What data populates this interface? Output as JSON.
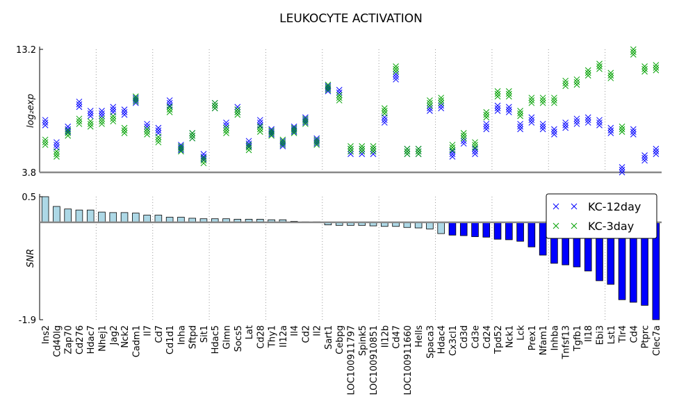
{
  "chart_data": [
    {
      "type": "scatter",
      "title": "LEUKOCYTE ACTIVATION",
      "ylabel": "log₂exp",
      "ylim": [
        3.8,
        13.2
      ],
      "yticks": [
        3.8,
        13.2
      ],
      "series": [
        {
          "name": "KC-12day",
          "color": "#0000ff",
          "values": [
            [
              7.4,
              7.6,
              7.8
            ],
            [
              5.7,
              5.9,
              6.1
            ],
            [
              6.9,
              7.1,
              7.3
            ],
            [
              8.8,
              9.0,
              9.2
            ],
            [
              8.1,
              8.3,
              8.5
            ],
            [
              8.1,
              8.3,
              8.5
            ],
            [
              8.4,
              8.6,
              8.8
            ],
            [
              8.2,
              8.4,
              8.6
            ],
            [
              9.1,
              9.3,
              9.5
            ],
            [
              7.1,
              7.3,
              7.5
            ],
            [
              6.8,
              7.0,
              7.2
            ],
            [
              8.9,
              9.1,
              9.3
            ],
            [
              5.5,
              5.7,
              5.9
            ],
            [
              6.4,
              6.6,
              6.8
            ],
            [
              4.8,
              5.0,
              5.2
            ],
            [
              8.7,
              8.9,
              9.1
            ],
            [
              7.2,
              7.4,
              7.6
            ],
            [
              8.4,
              8.6,
              8.8
            ],
            [
              5.8,
              6.0,
              6.2
            ],
            [
              7.4,
              7.6,
              7.8
            ],
            [
              6.7,
              6.9,
              7.1
            ],
            [
              5.8,
              6.0,
              6.2
            ],
            [
              6.9,
              7.1,
              7.3
            ],
            [
              7.6,
              7.8,
              8.0
            ],
            [
              6.0,
              6.2,
              6.4
            ],
            [
              10.0,
              10.2,
              10.4
            ],
            [
              9.7,
              9.9,
              10.1
            ],
            [
              5.2,
              5.4,
              5.6
            ],
            [
              5.2,
              5.4,
              5.6
            ],
            [
              5.2,
              5.4,
              5.6
            ],
            [
              7.6,
              7.8,
              8.0
            ],
            [
              10.9,
              11.1,
              11.3
            ],
            [
              5.2,
              5.4,
              5.6
            ],
            [
              5.2,
              5.4,
              5.6
            ],
            [
              8.5,
              8.7,
              8.9
            ],
            [
              8.7,
              8.9,
              9.1
            ],
            [
              5.0,
              5.2,
              5.4
            ],
            [
              6.0,
              6.2,
              6.4
            ],
            [
              5.2,
              5.4,
              5.6
            ],
            [
              7.1,
              7.3,
              7.5
            ],
            [
              8.5,
              8.7,
              8.9
            ],
            [
              8.4,
              8.6,
              8.8
            ],
            [
              7.1,
              7.3,
              7.5
            ],
            [
              7.6,
              7.8,
              8.0
            ],
            [
              7.1,
              7.3,
              7.5
            ],
            [
              6.7,
              6.9,
              7.1
            ],
            [
              7.2,
              7.4,
              7.6
            ],
            [
              7.5,
              7.7,
              7.9
            ],
            [
              7.6,
              7.8,
              8.0
            ],
            [
              7.4,
              7.6,
              7.8
            ],
            [
              6.8,
              7.0,
              7.2
            ],
            [
              3.8,
              4.0,
              4.2
            ],
            [
              6.7,
              6.9,
              7.1
            ],
            [
              4.7,
              4.9,
              5.1
            ],
            [
              5.2,
              5.4,
              5.6
            ]
          ]
        },
        {
          "name": "KC-3day",
          "color": "#00a000",
          "values": [
            [
              5.9,
              6.1,
              6.3
            ],
            [
              5.0,
              5.2,
              5.4
            ],
            [
              6.6,
              6.8,
              7.0
            ],
            [
              7.5,
              7.7,
              7.9
            ],
            [
              7.3,
              7.5,
              7.7
            ],
            [
              7.5,
              7.7,
              7.9
            ],
            [
              7.7,
              7.9,
              8.1
            ],
            [
              6.8,
              7.0,
              7.2
            ],
            [
              9.2,
              9.4,
              9.6
            ],
            [
              6.7,
              6.9,
              7.1
            ],
            [
              6.1,
              6.3,
              6.5
            ],
            [
              8.4,
              8.6,
              8.8
            ],
            [
              5.4,
              5.6,
              5.8
            ],
            [
              6.4,
              6.6,
              6.8
            ],
            [
              4.5,
              4.7,
              4.9
            ],
            [
              8.7,
              8.9,
              9.1
            ],
            [
              6.8,
              7.0,
              7.2
            ],
            [
              8.2,
              8.4,
              8.6
            ],
            [
              5.5,
              5.7,
              5.9
            ],
            [
              6.9,
              7.1,
              7.3
            ],
            [
              6.6,
              6.8,
              7.0
            ],
            [
              5.9,
              6.1,
              6.3
            ],
            [
              6.8,
              7.0,
              7.2
            ],
            [
              7.5,
              7.7,
              7.9
            ],
            [
              5.9,
              6.1,
              6.3
            ],
            [
              10.1,
              10.3,
              10.5
            ],
            [
              9.3,
              9.5,
              9.7
            ],
            [
              5.4,
              5.6,
              5.8
            ],
            [
              5.4,
              5.6,
              5.8
            ],
            [
              5.4,
              5.6,
              5.8
            ],
            [
              8.3,
              8.5,
              8.7
            ],
            [
              11.5,
              11.7,
              11.9
            ],
            [
              5.2,
              5.4,
              5.6
            ],
            [
              5.2,
              5.4,
              5.6
            ],
            [
              8.9,
              9.1,
              9.3
            ],
            [
              9.1,
              9.3,
              9.5
            ],
            [
              5.5,
              5.7,
              5.9
            ],
            [
              6.4,
              6.6,
              6.8
            ],
            [
              5.7,
              5.9,
              6.1
            ],
            [
              8.0,
              8.2,
              8.4
            ],
            [
              9.6,
              9.8,
              10.0
            ],
            [
              9.6,
              9.8,
              10.0
            ],
            [
              8.1,
              8.3,
              8.5
            ],
            [
              9.1,
              9.3,
              9.5
            ],
            [
              9.1,
              9.3,
              9.5
            ],
            [
              9.1,
              9.3,
              9.5
            ],
            [
              10.4,
              10.6,
              10.8
            ],
            [
              10.5,
              10.7,
              10.9
            ],
            [
              11.2,
              11.4,
              11.6
            ],
            [
              11.7,
              11.9,
              12.1
            ],
            [
              11.0,
              11.2,
              11.4
            ],
            [
              6.9,
              7.1,
              7.3
            ],
            [
              12.8,
              13.0,
              13.2
            ],
            [
              11.5,
              11.7,
              11.9
            ],
            [
              11.6,
              11.8,
              12.0
            ]
          ]
        }
      ],
      "legend": "upper right"
    },
    {
      "type": "bar",
      "ylabel": "SNR",
      "ylim": [
        -1.9,
        0.5
      ],
      "yticks": [
        -1.9,
        0.5
      ],
      "categories": [
        "Ins2",
        "Cd40lg",
        "Zap70",
        "Cd276",
        "Hdac7",
        "Nhej1",
        "Jag2",
        "Nck2",
        "Cadm1",
        "Il7",
        "Cd7",
        "Cd1d1",
        "Inha",
        "Sftpd",
        "Sit1",
        "Hdac5",
        "Glmn",
        "Socs5",
        "Lat",
        "Cd28",
        "Thy1",
        "Il12a",
        "Il4",
        "Cd2",
        "Il2",
        "Sart1",
        "Cebpg",
        "LOC100911797",
        "Spink5",
        "LOC100910851",
        "Il12b",
        "Cd47",
        "LOC100911660",
        "Hells",
        "Spaca3",
        "Hdac4",
        "Cx3cl1",
        "Cd3d",
        "Cd3e",
        "Cd24",
        "Tpd52",
        "Nck1",
        "Lck",
        "Prex1",
        "Nfam1",
        "Inhba",
        "Tnfsf13",
        "Tgfb1",
        "Il18",
        "Ebi3",
        "Lst1",
        "Tlr4",
        "Cd4",
        "Ptprc",
        "Clec7a"
      ],
      "values": [
        0.5,
        0.31,
        0.26,
        0.24,
        0.24,
        0.2,
        0.19,
        0.19,
        0.18,
        0.14,
        0.14,
        0.1,
        0.1,
        0.08,
        0.07,
        0.07,
        0.07,
        0.06,
        0.06,
        0.06,
        0.05,
        0.05,
        0.02,
        0.01,
        0.01,
        -0.05,
        -0.06,
        -0.06,
        -0.06,
        -0.07,
        -0.08,
        -0.08,
        -0.1,
        -0.11,
        -0.13,
        -0.22,
        -0.25,
        -0.26,
        -0.28,
        -0.29,
        -0.33,
        -0.34,
        -0.37,
        -0.48,
        -0.64,
        -0.8,
        -0.83,
        -0.87,
        -0.95,
        -1.14,
        -1.21,
        -1.51,
        -1.56,
        -1.62,
        -1.9
      ],
      "colors": [
        "#add8e6",
        "#add8e6",
        "#add8e6",
        "#add8e6",
        "#add8e6",
        "#add8e6",
        "#add8e6",
        "#add8e6",
        "#add8e6",
        "#add8e6",
        "#add8e6",
        "#add8e6",
        "#add8e6",
        "#add8e6",
        "#add8e6",
        "#add8e6",
        "#add8e6",
        "#add8e6",
        "#add8e6",
        "#add8e6",
        "#add8e6",
        "#add8e6",
        "#add8e6",
        "#add8e6",
        "#add8e6",
        "#add8e6",
        "#add8e6",
        "#add8e6",
        "#add8e6",
        "#add8e6",
        "#add8e6",
        "#add8e6",
        "#add8e6",
        "#add8e6",
        "#add8e6",
        "#add8e6",
        "#0000ff",
        "#0000ff",
        "#0000ff",
        "#0000ff",
        "#0000ff",
        "#0000ff",
        "#0000ff",
        "#0000ff",
        "#0000ff",
        "#0000ff",
        "#0000ff",
        "#0000ff",
        "#0000ff",
        "#0000ff",
        "#0000ff",
        "#0000ff",
        "#0000ff",
        "#0000ff",
        "#0000ff"
      ]
    }
  ]
}
